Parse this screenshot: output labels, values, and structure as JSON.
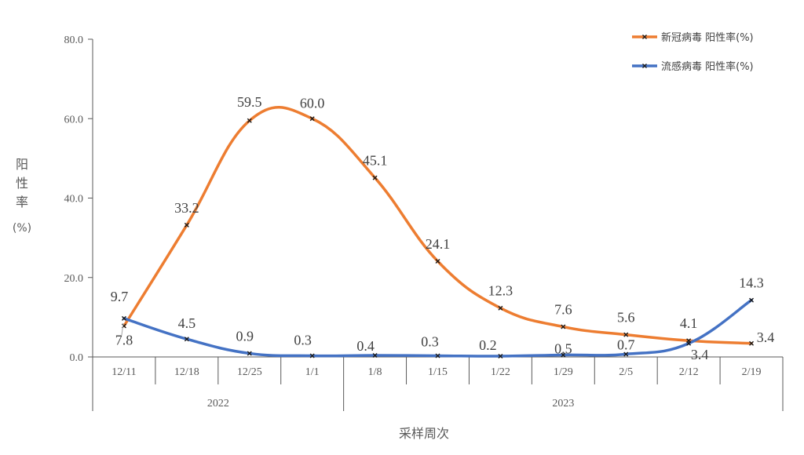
{
  "chart_data": {
    "type": "line",
    "categories": [
      "12/11",
      "12/18",
      "12/25",
      "1/1",
      "1/8",
      "1/15",
      "1/22",
      "1/29",
      "2/5",
      "2/12",
      "2/19"
    ],
    "year_groups": [
      {
        "label": "2022",
        "from": 0,
        "to": 3
      },
      {
        "label": "2023",
        "from": 4,
        "to": 10
      }
    ],
    "series": [
      {
        "name": "新冠病毒 阳性率(%)",
        "color": "#ED7D31",
        "values": [
          7.8,
          33.2,
          59.5,
          60.0,
          45.1,
          24.1,
          12.3,
          7.6,
          5.6,
          4.1,
          3.4
        ]
      },
      {
        "name": "流感病毒 阳性率(%)",
        "color": "#4472C4",
        "values": [
          9.7,
          4.5,
          0.9,
          0.3,
          0.4,
          0.3,
          0.2,
          0.5,
          0.7,
          3.4,
          14.3
        ]
      }
    ],
    "value_labels": [
      [
        "7.8",
        "33.2",
        "59.5",
        "60.0",
        "45.1",
        "24.1",
        "12.3",
        "7.6",
        "5.6",
        "4.1",
        "3.4"
      ],
      [
        "9.7",
        "4.5",
        "0.9",
        "0.3",
        "0.4",
        "0.3",
        "0.2",
        "0.5",
        "0.7",
        "3.4",
        "14.3"
      ]
    ],
    "yticks": [
      "0.0",
      "20.0",
      "40.0",
      "60.0",
      "80.0"
    ],
    "ylim": [
      0,
      80
    ],
    "ylabel": "阳性率(%)",
    "xlabel": "采样周次",
    "legend_position": "top-right",
    "grid": false
  }
}
